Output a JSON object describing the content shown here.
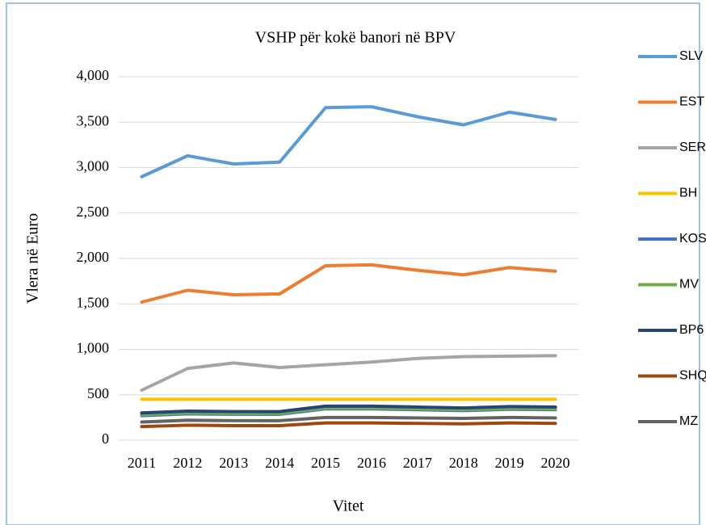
{
  "chart_data": {
    "type": "line",
    "title": "VSHP për kokë banori në BPV",
    "y_label": "Vlera në Euro",
    "x_label": "Vitet",
    "categories": [
      "2011",
      "2012",
      "2013",
      "2014",
      "2015",
      "2016",
      "2017",
      "2018",
      "2019",
      "2020"
    ],
    "ylim": [
      0,
      4000
    ],
    "yticks": [
      0,
      500,
      {
        "value": 1000,
        "label": "1,000"
      },
      {
        "value": 1500,
        "label": "1,500"
      },
      {
        "value": 2000,
        "label": "2,000"
      },
      {
        "value": 2500,
        "label": "2,500"
      },
      {
        "value": 3000,
        "label": "3,000"
      },
      {
        "value": 3500,
        "label": "3,500"
      },
      {
        "value": 4000,
        "label": "4,000"
      }
    ],
    "grid": true,
    "legend": "right",
    "series": [
      {
        "name": "SLV",
        "color": "#5b9bd5",
        "values": [
          2900,
          3130,
          3040,
          3060,
          3660,
          3670,
          3560,
          3470,
          3610,
          3530
        ]
      },
      {
        "name": "EST",
        "color": "#ed7d31",
        "values": [
          1520,
          1650,
          1600,
          1610,
          1920,
          1930,
          1870,
          1820,
          1900,
          1860
        ]
      },
      {
        "name": "SER",
        "color": "#a5a5a5",
        "values": [
          550,
          790,
          850,
          800,
          830,
          860,
          900,
          920,
          925,
          930
        ]
      },
      {
        "name": "BH",
        "color": "#ffc000",
        "values": [
          450,
          450,
          450,
          450,
          450,
          450,
          450,
          450,
          450,
          450
        ]
      },
      {
        "name": "KOS",
        "color": "#4472c4",
        "values": [
          270,
          290,
          285,
          285,
          345,
          345,
          335,
          325,
          340,
          335
        ]
      },
      {
        "name": "MV",
        "color": "#70ad47",
        "values": [
          280,
          300,
          295,
          295,
          355,
          355,
          345,
          335,
          350,
          345
        ]
      },
      {
        "name": "BP6",
        "color": "#264478",
        "values": [
          300,
          320,
          315,
          315,
          375,
          375,
          365,
          355,
          370,
          365
        ]
      },
      {
        "name": "SHQ",
        "color": "#9e480e",
        "values": [
          150,
          165,
          160,
          160,
          190,
          190,
          185,
          180,
          190,
          185
        ]
      },
      {
        "name": "MZ",
        "color": "#636363",
        "values": [
          200,
          220,
          215,
          215,
          250,
          250,
          245,
          240,
          250,
          245
        ]
      }
    ]
  }
}
